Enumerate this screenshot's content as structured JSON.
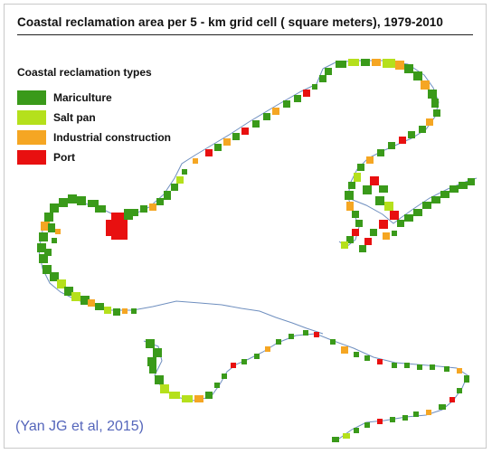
{
  "title": "Coastal reclamation area per 5 - km grid cell ( square meters), 1979-2010",
  "legend": {
    "title": "Coastal reclamation types",
    "items": [
      {
        "label": "Mariculture",
        "color": "#3a9a1a"
      },
      {
        "label": "Salt pan",
        "color": "#b5e01c"
      },
      {
        "label": "Industrial construction",
        "color": "#f5a623"
      },
      {
        "label": "Port",
        "color": "#e81010"
      }
    ]
  },
  "coastline_color": "#6f8fbf",
  "citation": "(Yan JG et al, 2015)"
}
